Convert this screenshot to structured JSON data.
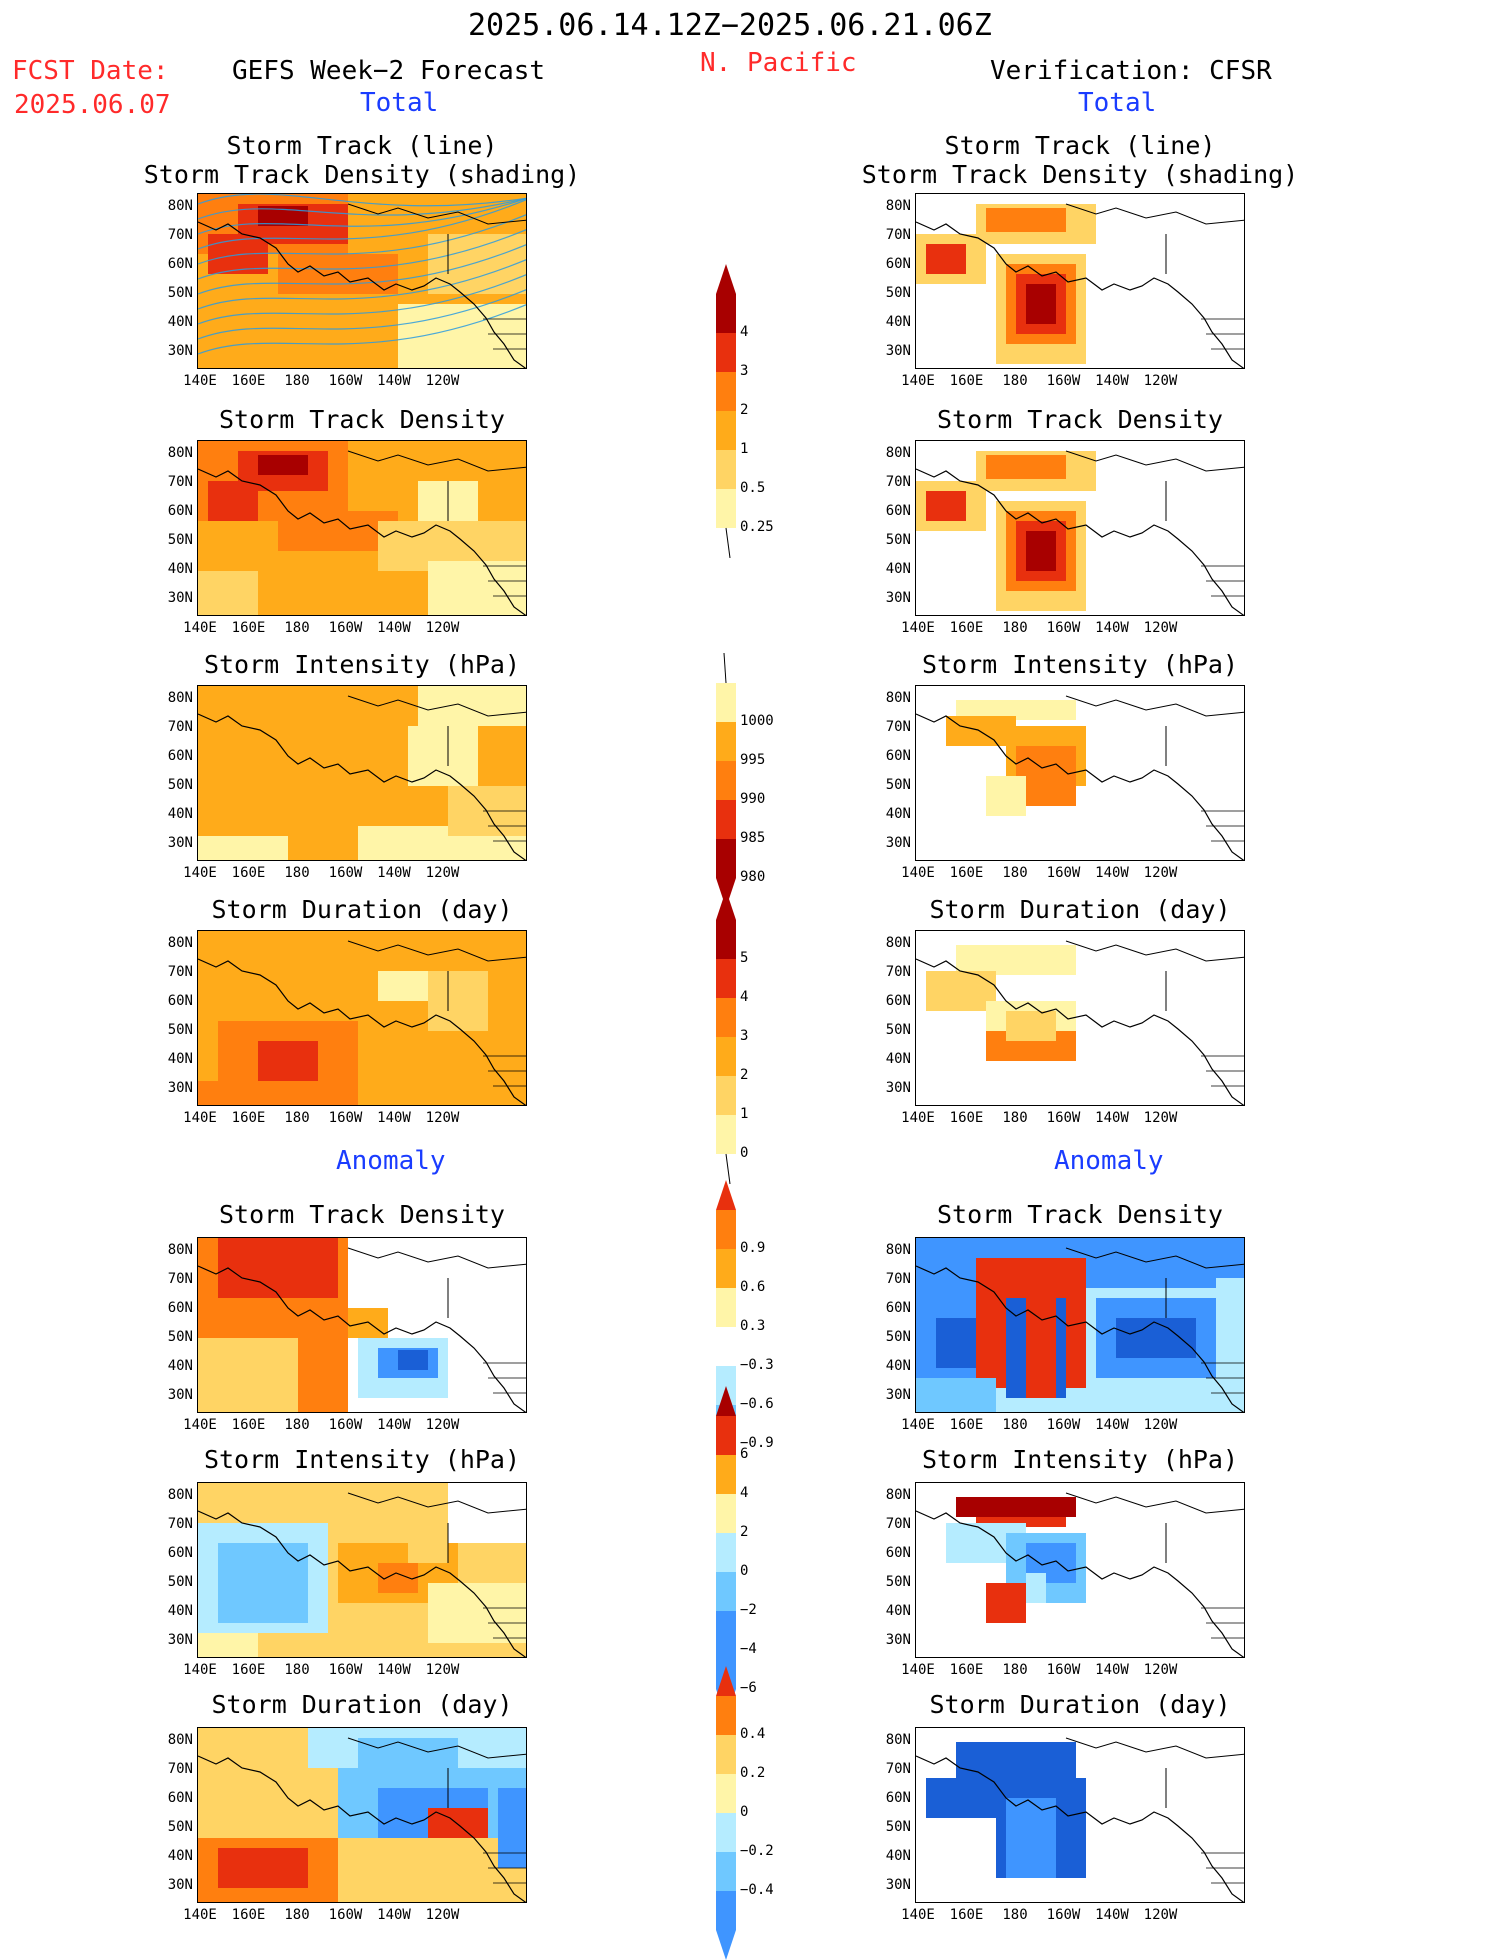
{
  "header": {
    "date_range": "2025.06.14.12Z−2025.06.21.06Z",
    "region": "N. Pacific",
    "fcst_label": "FCST Date:",
    "fcst_date": "2025.06.07",
    "left_title": "GEFS Week−2 Forecast",
    "right_title": "Verification: CFSR",
    "total_label": "Total",
    "anomaly_label": "Anomaly"
  },
  "axes": {
    "lat_ticks": [
      "80N",
      "70N",
      "60N",
      "50N",
      "40N",
      "30N"
    ],
    "lon_ticks": [
      "140E",
      "160E",
      "180",
      "160W",
      "140W",
      "120W"
    ]
  },
  "panels": {
    "track_line_1": "Storm Track (line)",
    "track_line_2": "Storm Track Density (shading)",
    "track_density": "Storm Track Density",
    "intensity": "Storm Intensity (hPa)",
    "duration": "Storm Duration (day)"
  },
  "colorbars": {
    "density": [
      "4",
      "3",
      "2",
      "1",
      "0.5",
      "0.25"
    ],
    "intensity": [
      "1000",
      "995",
      "990",
      "985",
      "980"
    ],
    "duration": [
      "5",
      "4",
      "3",
      "2",
      "1",
      "0"
    ],
    "anom_density": [
      "0.9",
      "0.6",
      "0.3",
      "−0.3",
      "−0.6",
      "−0.9"
    ],
    "anom_intensity": [
      "6",
      "4",
      "2",
      "0",
      "−2",
      "−4",
      "−6"
    ],
    "anom_duration": [
      "0.4",
      "0.2",
      "0",
      "−0.2",
      "−0.4"
    ]
  },
  "colors": {
    "c1": "#fff5a8",
    "c2": "#ffd464",
    "c3": "#ffab1a",
    "c4": "#ff7f0f",
    "c5": "#e8300e",
    "c6": "#a80000",
    "b1": "#b5ecff",
    "b2": "#6fc8ff",
    "b3": "#3f95ff",
    "b4": "#1a5fd6"
  },
  "chart_data": [
    {
      "type": "heatmap",
      "panel": "GEFS Week−2 Forecast · Storm Track (line) / Storm Track Density (shading)",
      "legend": "density"
    },
    {
      "type": "heatmap",
      "panel": "GEFS Week−2 Forecast · Storm Track Density",
      "legend": "density"
    },
    {
      "type": "heatmap",
      "panel": "GEFS Week−2 Forecast · Storm Intensity (hPa)",
      "legend": "intensity"
    },
    {
      "type": "heatmap",
      "panel": "GEFS Week−2 Forecast · Storm Duration (day)",
      "legend": "duration"
    },
    {
      "type": "heatmap",
      "panel": "GEFS Week−2 Forecast · Anomaly · Storm Track Density",
      "legend": "anom_density"
    },
    {
      "type": "heatmap",
      "panel": "GEFS Week−2 Forecast · Anomaly · Storm Intensity (hPa)",
      "legend": "anom_intensity"
    },
    {
      "type": "heatmap",
      "panel": "GEFS Week−2 Forecast · Anomaly · Storm Duration (day)",
      "legend": "anom_duration"
    },
    {
      "type": "heatmap",
      "panel": "Verification: CFSR · Storm Track (line) / Storm Track Density (shading)",
      "legend": "density"
    },
    {
      "type": "heatmap",
      "panel": "Verification: CFSR · Storm Track Density",
      "legend": "density"
    },
    {
      "type": "heatmap",
      "panel": "Verification: CFSR · Storm Intensity (hPa)",
      "legend": "intensity"
    },
    {
      "type": "heatmap",
      "panel": "Verification: CFSR · Storm Duration (day)",
      "legend": "duration"
    },
    {
      "type": "heatmap",
      "panel": "Verification: CFSR · Anomaly · Storm Track Density",
      "legend": "anom_density"
    },
    {
      "type": "heatmap",
      "panel": "Verification: CFSR · Anomaly · Storm Intensity (hPa)",
      "legend": "anom_intensity"
    },
    {
      "type": "heatmap",
      "panel": "Verification: CFSR · Anomaly · Storm Duration (day)",
      "legend": "anom_duration"
    }
  ]
}
